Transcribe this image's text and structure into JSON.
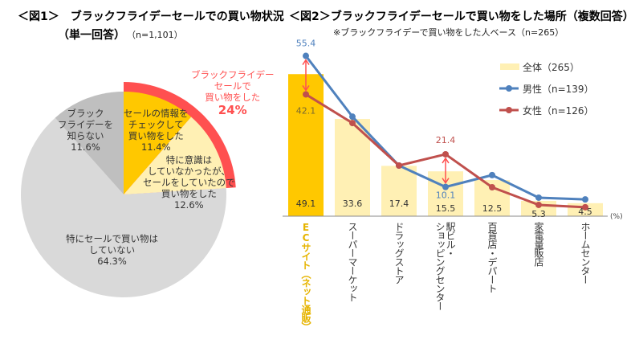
{
  "fig1": {
    "title": "＜図1＞　ブラックフライデーセールでの買い物状況",
    "title2": "（単一回答）",
    "n": "（n=1,101）",
    "callout": [
      "ブラックフライデー",
      "セールで",
      "買い物をした"
    ],
    "callout_pct": "24%",
    "callout_color": "#FF5050"
  },
  "fig2": {
    "title": "＜図2＞ブラックフライデーセールで買い物をした場所（複数回答）",
    "subtitle": "※ブラックフライデーで買い物をした人ベース（n=265）",
    "unit": "(%)"
  },
  "chart_data": [
    {
      "type": "pie",
      "start": "top, clockwise",
      "slices": [
        {
          "label": [
            "セールの情報を",
            "チェックして",
            "買い物をした"
          ],
          "value": 11.4,
          "pct": "11.4%",
          "color": "#FFC800"
        },
        {
          "label": [
            "特に意識は",
            "していなかったが、",
            "セールをしていたので",
            "買い物をした"
          ],
          "value": 12.6,
          "pct": "12.6%",
          "color": "#FFF0B4"
        },
        {
          "label": [
            "特にセールで買い物は",
            "していない"
          ],
          "value": 64.3,
          "pct": "64.3%",
          "color": "#D9D9D9"
        },
        {
          "label": [
            "ブラック",
            "フライデーを",
            "知らない"
          ],
          "value": 11.6,
          "pct": "11.6%",
          "color": "#BFBFBF"
        }
      ],
      "highlight_arc": {
        "value": 24,
        "color": "#FF5050"
      }
    },
    {
      "type": "bar+line",
      "categories": [
        "ECサイト（ネット通販）",
        "スーパーマーケット",
        "ドラッグストア",
        "駅ビル・ショッピングセンター",
        "百貨店・デパート",
        "家電量販店",
        "ホームセンター"
      ],
      "highlight_category_color": "#E6B400",
      "ylim": [
        0,
        60
      ],
      "grid": false,
      "legend_position": "top-right",
      "series": [
        {
          "name": "全体（265）",
          "type": "bar",
          "values": [
            49.1,
            33.6,
            17.4,
            15.5,
            12.5,
            5.3,
            4.5
          ],
          "labels": [
            "49.1",
            "33.6",
            "17.4",
            "15.5",
            "12.5",
            "5.3",
            "4.5"
          ],
          "color": "#FFF0B4",
          "highlight_color": "#FFC800"
        },
        {
          "name": "男性（n=139）",
          "type": "line",
          "values": [
            55.4,
            34.4,
            17.5,
            10.1,
            14.2,
            6.4,
            5.8
          ],
          "color": "#4F81BD"
        },
        {
          "name": "女性（n=126）",
          "type": "line",
          "values": [
            42.1,
            32.2,
            17.5,
            21.4,
            10.0,
            3.9,
            3.1
          ],
          "color": "#C0504D"
        }
      ],
      "annotations": [
        {
          "category": 0,
          "male": "55.4",
          "female": "42.1"
        },
        {
          "category": 3,
          "male": "10.1",
          "female": "21.4"
        }
      ],
      "arrow_color": "#FF5050"
    }
  ]
}
